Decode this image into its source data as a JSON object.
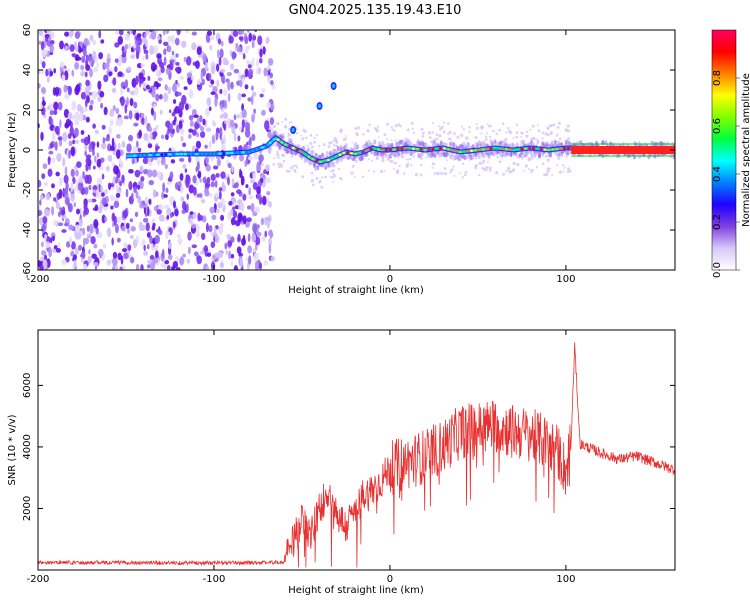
{
  "title": "GN04.2025.135.19.43.E10",
  "chart_data": [
    {
      "type": "heatmap",
      "xlabel": "Height of straight line (km)",
      "ylabel": "Frequency (Hz)",
      "xlim": [
        -200,
        162
      ],
      "ylim": [
        -60,
        60
      ],
      "xticks": [
        -200,
        -100,
        0,
        100
      ],
      "yticks": [
        60,
        40,
        20,
        0,
        -20,
        -40,
        -60
      ],
      "colorbar": {
        "label": "Normalized spectral amplitude",
        "range": [
          0.0,
          1.0
        ],
        "ticks": [
          "0.0",
          "0.2",
          "0.4",
          "0.6",
          "0.8"
        ],
        "colors": [
          "#ffffff",
          "#d8c8f8",
          "#8040e0",
          "#2000ff",
          "#0080ff",
          "#00ffff",
          "#00ff40",
          "#80ff00",
          "#ffff00",
          "#ff8000",
          "#ff0000",
          "#ff0060"
        ]
      },
      "trace": {
        "x": [
          -150,
          -120,
          -100,
          -80,
          -70,
          -65,
          -60,
          -55,
          -50,
          -45,
          -40,
          -35,
          -30,
          -25,
          -20,
          -15,
          -10,
          -5,
          0,
          10,
          20,
          30,
          40,
          50,
          60,
          70,
          80,
          90,
          100,
          103,
          130,
          162
        ],
        "y": [
          -3,
          -2,
          -2,
          -1,
          2,
          6,
          3,
          1,
          -1,
          -4,
          -6,
          -5,
          -3,
          -1,
          -2,
          -1,
          1,
          0,
          0,
          1,
          0,
          1,
          -1,
          0,
          1,
          0,
          1,
          0,
          1,
          1,
          0,
          0
        ]
      },
      "noise_region_x": [
        -200,
        -66
      ],
      "side_branch": {
        "x": [
          -55,
          -40,
          -32
        ],
        "y": [
          10,
          22,
          32
        ]
      }
    },
    {
      "type": "line",
      "xlabel": "Height of straight line (km)",
      "ylabel": "SNR (10 * v/v)",
      "xlim": [
        -200,
        162
      ],
      "ylim": [
        0,
        7800
      ],
      "xticks": [
        -200,
        -100,
        0,
        100
      ],
      "yticks": [
        2000,
        4000,
        6000
      ],
      "color": "#e83030",
      "series": [
        {
          "x": [
            -200,
            -150,
            -100,
            -60,
            -55,
            -50,
            -45,
            -40,
            -35,
            -30,
            -25,
            -20,
            -15,
            -10,
            -5,
            0,
            10,
            20,
            30,
            40,
            50,
            60,
            70,
            80,
            90,
            95,
            100,
            103,
            105,
            108,
            120,
            130,
            140,
            150,
            162
          ],
          "y": [
            250,
            240,
            230,
            250,
            900,
            1600,
            1100,
            2000,
            2600,
            1800,
            1400,
            1900,
            2400,
            2600,
            2900,
            3300,
            3500,
            3700,
            4000,
            4500,
            4600,
            4700,
            4500,
            4400,
            4100,
            3900,
            3200,
            4200,
            7300,
            4100,
            3800,
            3600,
            3700,
            3500,
            3250
          ]
        }
      ]
    }
  ]
}
